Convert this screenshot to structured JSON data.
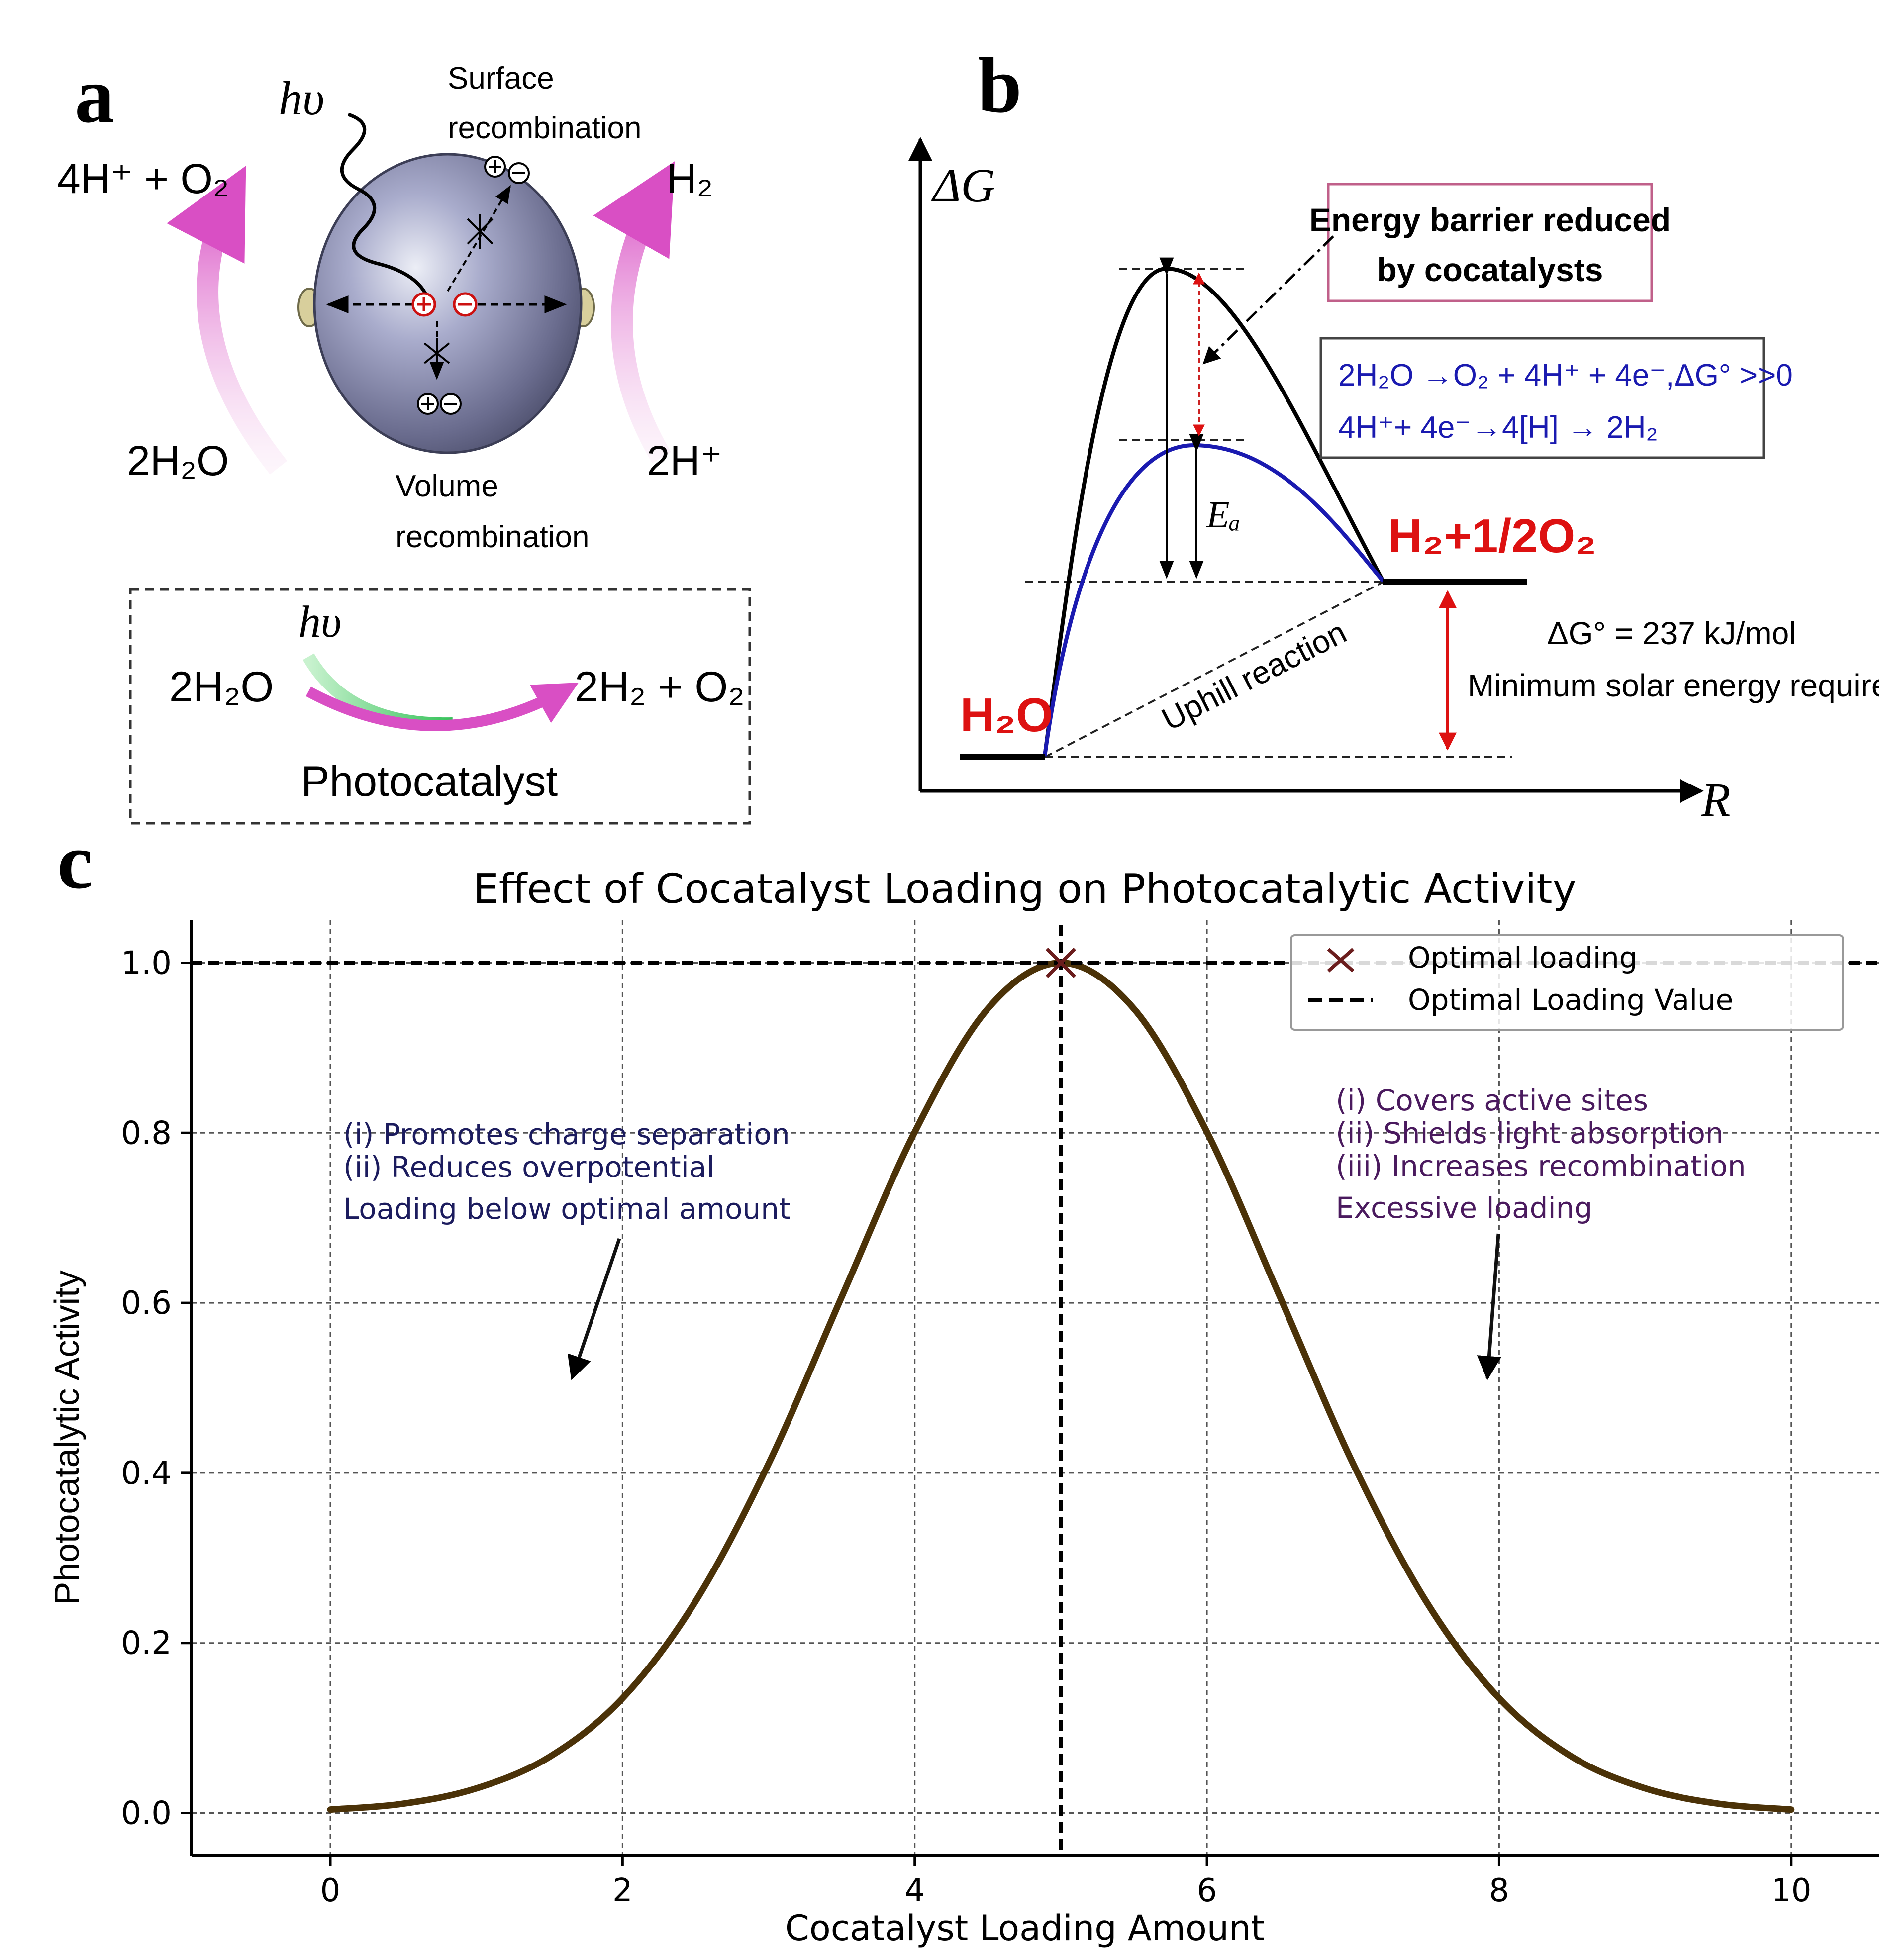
{
  "panel_a": {
    "label": "a",
    "hv": "hυ",
    "surface_recombination": [
      "Surface",
      "recombination"
    ],
    "volume_recombination": [
      "Volume",
      "recombination"
    ],
    "products_left": "4H⁺ + O₂",
    "reactant_left": "2H₂O",
    "products_right": "H₂",
    "reactant_right": "2H⁺",
    "box": {
      "hv": "hυ",
      "reactant": "2H₂O",
      "products": "2H₂ + O₂",
      "label": "Photocatalyst"
    }
  },
  "panel_b": {
    "label": "b",
    "y_axis": "ΔG",
    "x_axis": "R",
    "barrier_box": [
      "Energy barrier reduced",
      "by cocatalysts"
    ],
    "equations": [
      "2H₂O →O₂ + 4H⁺ + 4e⁻,ΔG° >>0",
      "4H⁺+ 4e⁻→4[H] → 2H₂"
    ],
    "ea": "Eₐ",
    "product": "H₂+1/2O₂",
    "reactant": "H₂O",
    "uphill": "Uphill reaction",
    "dg_text": "ΔG° = 237 kJ/mol",
    "min_energy": "Minimum solar energy required",
    "colors": {
      "uncatalyzed": "#000000",
      "catalyzed": "#1a1ab0",
      "red": "#dd1111",
      "box_border": "#c0608a"
    }
  },
  "panel_c": {
    "label": "c",
    "left_annotation": [
      "(i) Promotes charge separation",
      "(ii) Reduces overpotential",
      "Loading below optimal amount"
    ],
    "right_annotation": [
      "(i) Covers active sites",
      "(ii) Shields light absorption",
      "(iii) Increases recombination",
      "Excessive loading"
    ],
    "colors": {
      "curve": "#4b3208",
      "marker": "#6b1d1d",
      "left_text": "#1c1c5e",
      "right_text": "#4a1a5e"
    }
  },
  "chart_data": {
    "type": "line",
    "title": "Effect of Cocatalyst Loading on Photocatalytic Activity",
    "xlabel": "Cocatalyst Loading Amount",
    "ylabel": "Photocatalytic Activity",
    "xlim": [
      -0.95,
      10.6
    ],
    "ylim": [
      -0.05,
      1.05
    ],
    "x_ticks": [
      0,
      2,
      4,
      6,
      8,
      10
    ],
    "y_ticks": [
      0.0,
      0.2,
      0.4,
      0.6,
      0.8,
      1.0
    ],
    "x_tick_labels": [
      "0",
      "2",
      "4",
      "6",
      "8",
      "10"
    ],
    "y_tick_labels": [
      "0.0",
      "0.2",
      "0.4",
      "0.6",
      "0.8",
      "1.0"
    ],
    "grid": true,
    "legend_position": "top-right",
    "series": [
      {
        "name": "",
        "x": [
          0,
          0.5,
          1,
          1.5,
          2,
          2.5,
          3,
          3.5,
          4,
          4.5,
          5,
          5.5,
          6,
          6.5,
          7,
          7.5,
          8,
          8.5,
          9,
          9.5,
          10
        ],
        "y": [
          0.004,
          0.011,
          0.029,
          0.066,
          0.135,
          0.249,
          0.411,
          0.607,
          0.801,
          0.946,
          1.0,
          0.946,
          0.801,
          0.607,
          0.411,
          0.249,
          0.135,
          0.066,
          0.029,
          0.011,
          0.004
        ]
      }
    ],
    "optimal_point": {
      "x": 5,
      "y": 1.0,
      "label": "Optimal loading"
    },
    "optimal_line": {
      "x": 5,
      "y": 1.0,
      "label": "Optimal Loading Value"
    }
  }
}
